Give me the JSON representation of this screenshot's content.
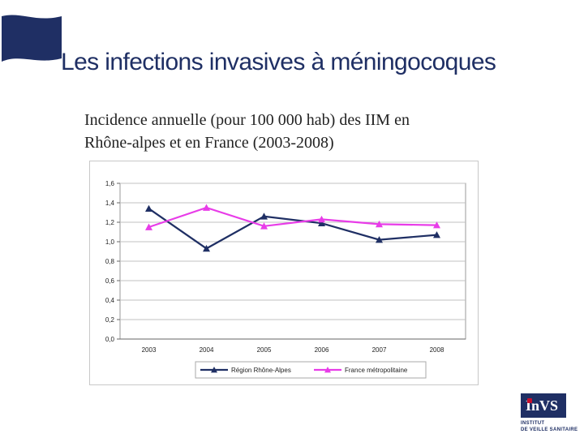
{
  "slide": {
    "title": "Les infections invasives à méningocoques",
    "subtitle_line1": "Incidence annuelle (pour 100 000 hab) des IIM en",
    "subtitle_line2": "Rhône-alpes et en France (2003-2008)"
  },
  "logo": {
    "mark": "InVS",
    "line1": "INSTITUT",
    "line2": "DE VEILLE SANITAIRE"
  },
  "colors": {
    "title": "#1f2f64",
    "series_rhone": "#1f2f64",
    "series_france": "#e83ce8"
  },
  "chart_data": {
    "type": "line",
    "title": "",
    "xlabel": "",
    "ylabel": "",
    "categories": [
      "2003",
      "2004",
      "2005",
      "2006",
      "2007",
      "2008"
    ],
    "ylim": [
      0,
      1.6
    ],
    "yticks": [
      "0,0",
      "0,2",
      "0,4",
      "0,6",
      "0,8",
      "1,0",
      "1,2",
      "1,4",
      "1,6"
    ],
    "grid": true,
    "legend_position": "bottom",
    "series": [
      {
        "name": "Région Rhône-Alpes",
        "values": [
          1.34,
          0.93,
          1.26,
          1.19,
          1.02,
          1.07
        ],
        "color": "#1f2f64"
      },
      {
        "name": "France métropolitaine",
        "values": [
          1.15,
          1.35,
          1.16,
          1.23,
          1.18,
          1.17
        ],
        "color": "#e83ce8"
      }
    ]
  }
}
